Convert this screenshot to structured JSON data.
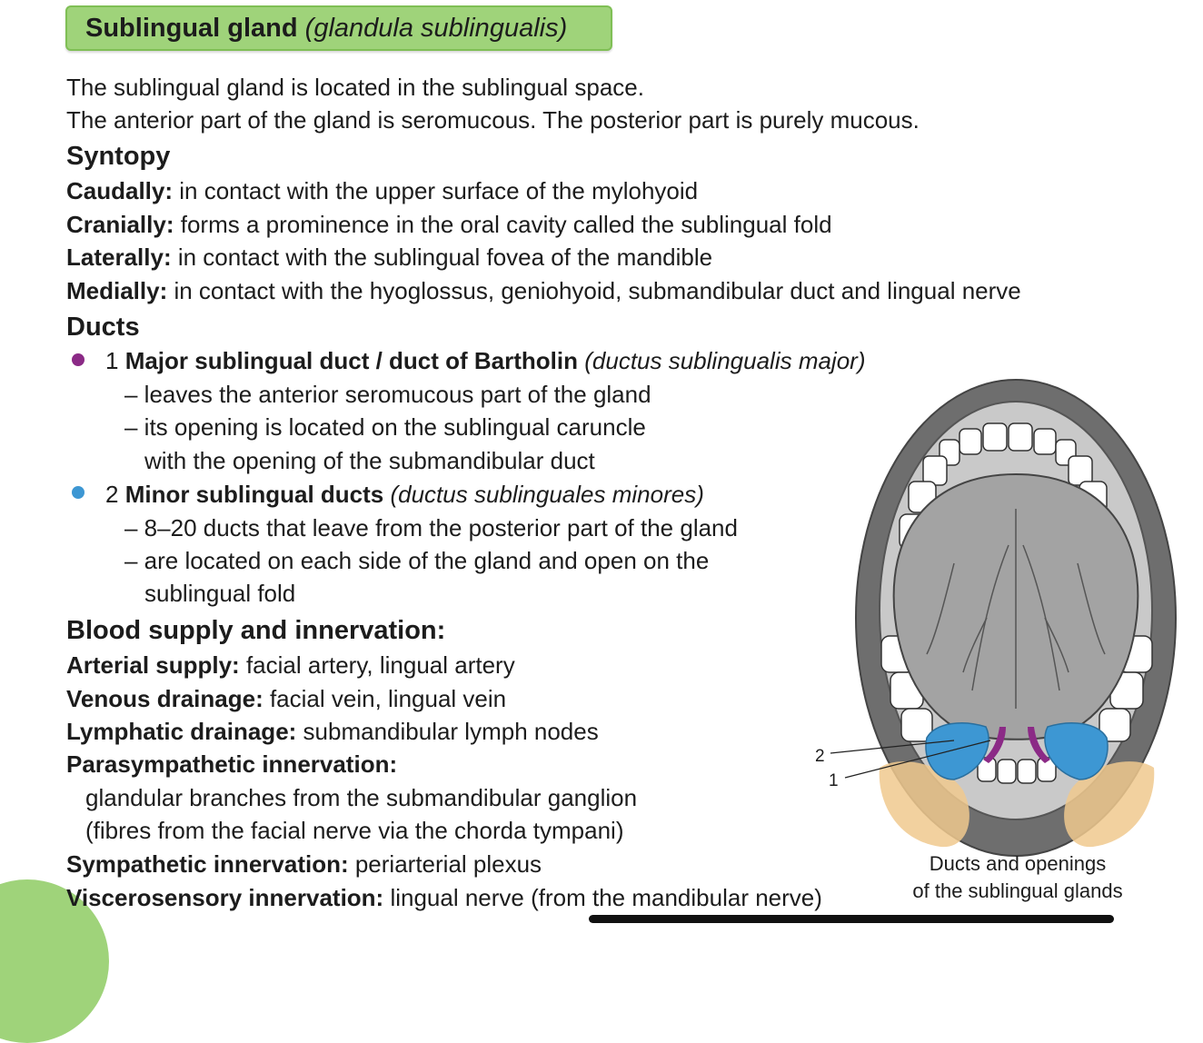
{
  "title": {
    "bold": "Sublingual gland",
    "italic": "(glandula sublingualis)"
  },
  "intro": [
    "The sublingual gland is located in the sublingual space.",
    "The anterior part of the gland is seromucous. The posterior part is purely mucous."
  ],
  "syntopy": {
    "heading": "Syntopy",
    "items": [
      {
        "label": "Caudally:",
        "text": " in contact with the upper surface of the mylohyoid"
      },
      {
        "label": "Cranially:",
        "text": " forms a prominence in the oral cavity called the sublingual fold"
      },
      {
        "label": "Laterally:",
        "text": " in contact with the sublingual fovea of the mandible"
      },
      {
        "label": "Medially:",
        "text": " in contact with the hyoglossus, geniohyoid, submandibular duct and lingual nerve"
      }
    ]
  },
  "ducts": {
    "heading": "Ducts",
    "major": {
      "number": "1 ",
      "bold": "Major sublingual duct / duct of Bartholin",
      "italic": " (ductus sublingualis major)",
      "color": "#8b2a86",
      "lines": [
        "– leaves the anterior seromucous part of the gland",
        "– its opening is located on the sublingual caruncle",
        "with the opening of the submandibular duct"
      ]
    },
    "minor": {
      "number": "2 ",
      "bold": "Minor sublingual ducts",
      "italic": " (ductus sublinguales minores)",
      "color": "#3d97d3",
      "lines": [
        "– 8–20 ducts that leave from the posterior part of the gland",
        "– are located on each side of the gland and open on the",
        "sublingual fold"
      ]
    }
  },
  "supply": {
    "heading": "Blood supply and innervation:",
    "arterial": {
      "label": "Arterial supply:",
      "text": " facial artery, lingual artery"
    },
    "venous": {
      "label": "Venous drainage:",
      "text": " facial vein, lingual vein"
    },
    "lymphatic": {
      "label": "Lymphatic drainage:",
      "text": " submandibular lymph nodes"
    },
    "parasympathetic": {
      "label": "Parasympathetic innervation:",
      "lines": [
        "glandular branches from the submandibular ganglion",
        "(fibres from the facial nerve via the chorda tympani)"
      ]
    },
    "sympathetic": {
      "label": "Sympathetic innervation:",
      "text": " periarterial plexus"
    },
    "viscerosensory": {
      "label": "Viscerosensory innervation:",
      "text": " lingual nerve (from the mandibular nerve)"
    }
  },
  "figure": {
    "label_2": "2",
    "label_1": "1",
    "caption": [
      "Ducts and openings",
      "of the sublingual glands"
    ],
    "colors": {
      "lip": "#6e6e6e",
      "cavity": "#c9c9c9",
      "tongue": "#a3a3a3",
      "gland": "#f0c98e",
      "minor_ducts": "#3d97d3",
      "major_duct": "#8b2a86",
      "accent_green": "#9fd37a"
    }
  }
}
